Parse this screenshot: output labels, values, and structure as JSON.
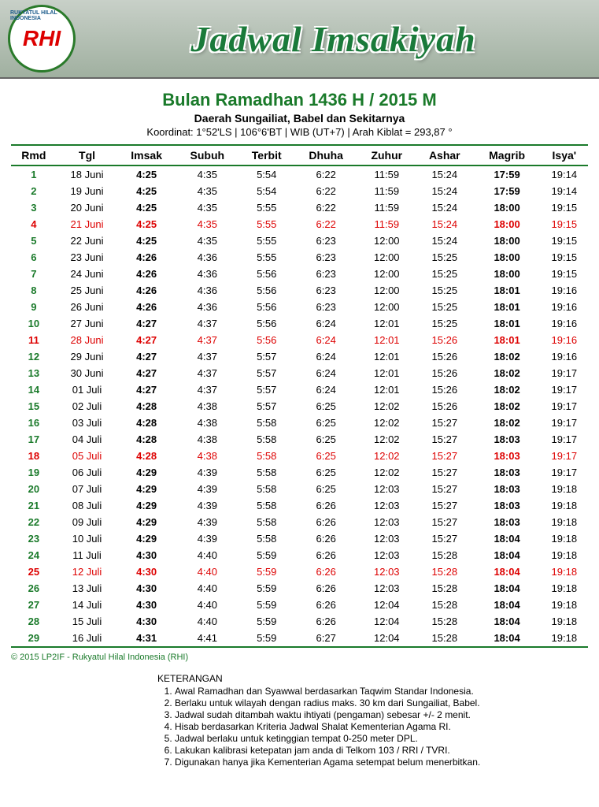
{
  "banner": {
    "logo_main": "RHI",
    "logo_arc": "RUKYATUL HILAL INDONESIA",
    "title": "Jadwal Imsakiyah"
  },
  "header": {
    "main": "Bulan Ramadhan 1436 H / 2015 M",
    "region": "Daerah Sungailiat, Babel dan Sekitarnya",
    "coord": "Koordinat: 1°52'LS | 106°6'BT | WIB (UT+7) | Arah Kiblat = 293,87 °"
  },
  "columns": [
    "Rmd",
    "Tgl",
    "Imsak",
    "Subuh",
    "Terbit",
    "Dhuha",
    "Zuhur",
    "Ashar",
    "Magrib",
    "Isya'"
  ],
  "rows": [
    {
      "rmd": "1",
      "tgl": "18 Juni",
      "imsak": "4:25",
      "subuh": "4:35",
      "terbit": "5:54",
      "dhuha": "6:22",
      "zuhur": "11:59",
      "ashar": "15:24",
      "magrib": "17:59",
      "isya": "19:14",
      "sun": false
    },
    {
      "rmd": "2",
      "tgl": "19 Juni",
      "imsak": "4:25",
      "subuh": "4:35",
      "terbit": "5:54",
      "dhuha": "6:22",
      "zuhur": "11:59",
      "ashar": "15:24",
      "magrib": "17:59",
      "isya": "19:14",
      "sun": false
    },
    {
      "rmd": "3",
      "tgl": "20 Juni",
      "imsak": "4:25",
      "subuh": "4:35",
      "terbit": "5:55",
      "dhuha": "6:22",
      "zuhur": "11:59",
      "ashar": "15:24",
      "magrib": "18:00",
      "isya": "19:15",
      "sun": false
    },
    {
      "rmd": "4",
      "tgl": "21 Juni",
      "imsak": "4:25",
      "subuh": "4:35",
      "terbit": "5:55",
      "dhuha": "6:22",
      "zuhur": "11:59",
      "ashar": "15:24",
      "magrib": "18:00",
      "isya": "19:15",
      "sun": true
    },
    {
      "rmd": "5",
      "tgl": "22 Juni",
      "imsak": "4:25",
      "subuh": "4:35",
      "terbit": "5:55",
      "dhuha": "6:23",
      "zuhur": "12:00",
      "ashar": "15:24",
      "magrib": "18:00",
      "isya": "19:15",
      "sun": false
    },
    {
      "rmd": "6",
      "tgl": "23 Juni",
      "imsak": "4:26",
      "subuh": "4:36",
      "terbit": "5:55",
      "dhuha": "6:23",
      "zuhur": "12:00",
      "ashar": "15:25",
      "magrib": "18:00",
      "isya": "19:15",
      "sun": false
    },
    {
      "rmd": "7",
      "tgl": "24 Juni",
      "imsak": "4:26",
      "subuh": "4:36",
      "terbit": "5:56",
      "dhuha": "6:23",
      "zuhur": "12:00",
      "ashar": "15:25",
      "magrib": "18:00",
      "isya": "19:15",
      "sun": false
    },
    {
      "rmd": "8",
      "tgl": "25 Juni",
      "imsak": "4:26",
      "subuh": "4:36",
      "terbit": "5:56",
      "dhuha": "6:23",
      "zuhur": "12:00",
      "ashar": "15:25",
      "magrib": "18:01",
      "isya": "19:16",
      "sun": false
    },
    {
      "rmd": "9",
      "tgl": "26 Juni",
      "imsak": "4:26",
      "subuh": "4:36",
      "terbit": "5:56",
      "dhuha": "6:23",
      "zuhur": "12:00",
      "ashar": "15:25",
      "magrib": "18:01",
      "isya": "19:16",
      "sun": false
    },
    {
      "rmd": "10",
      "tgl": "27 Juni",
      "imsak": "4:27",
      "subuh": "4:37",
      "terbit": "5:56",
      "dhuha": "6:24",
      "zuhur": "12:01",
      "ashar": "15:25",
      "magrib": "18:01",
      "isya": "19:16",
      "sun": false
    },
    {
      "rmd": "11",
      "tgl": "28 Juni",
      "imsak": "4:27",
      "subuh": "4:37",
      "terbit": "5:56",
      "dhuha": "6:24",
      "zuhur": "12:01",
      "ashar": "15:26",
      "magrib": "18:01",
      "isya": "19:16",
      "sun": true
    },
    {
      "rmd": "12",
      "tgl": "29 Juni",
      "imsak": "4:27",
      "subuh": "4:37",
      "terbit": "5:57",
      "dhuha": "6:24",
      "zuhur": "12:01",
      "ashar": "15:26",
      "magrib": "18:02",
      "isya": "19:16",
      "sun": false
    },
    {
      "rmd": "13",
      "tgl": "30 Juni",
      "imsak": "4:27",
      "subuh": "4:37",
      "terbit": "5:57",
      "dhuha": "6:24",
      "zuhur": "12:01",
      "ashar": "15:26",
      "magrib": "18:02",
      "isya": "19:17",
      "sun": false
    },
    {
      "rmd": "14",
      "tgl": "01 Juli",
      "imsak": "4:27",
      "subuh": "4:37",
      "terbit": "5:57",
      "dhuha": "6:24",
      "zuhur": "12:01",
      "ashar": "15:26",
      "magrib": "18:02",
      "isya": "19:17",
      "sun": false
    },
    {
      "rmd": "15",
      "tgl": "02 Juli",
      "imsak": "4:28",
      "subuh": "4:38",
      "terbit": "5:57",
      "dhuha": "6:25",
      "zuhur": "12:02",
      "ashar": "15:26",
      "magrib": "18:02",
      "isya": "19:17",
      "sun": false
    },
    {
      "rmd": "16",
      "tgl": "03 Juli",
      "imsak": "4:28",
      "subuh": "4:38",
      "terbit": "5:58",
      "dhuha": "6:25",
      "zuhur": "12:02",
      "ashar": "15:27",
      "magrib": "18:02",
      "isya": "19:17",
      "sun": false
    },
    {
      "rmd": "17",
      "tgl": "04 Juli",
      "imsak": "4:28",
      "subuh": "4:38",
      "terbit": "5:58",
      "dhuha": "6:25",
      "zuhur": "12:02",
      "ashar": "15:27",
      "magrib": "18:03",
      "isya": "19:17",
      "sun": false
    },
    {
      "rmd": "18",
      "tgl": "05 Juli",
      "imsak": "4:28",
      "subuh": "4:38",
      "terbit": "5:58",
      "dhuha": "6:25",
      "zuhur": "12:02",
      "ashar": "15:27",
      "magrib": "18:03",
      "isya": "19:17",
      "sun": true
    },
    {
      "rmd": "19",
      "tgl": "06 Juli",
      "imsak": "4:29",
      "subuh": "4:39",
      "terbit": "5:58",
      "dhuha": "6:25",
      "zuhur": "12:02",
      "ashar": "15:27",
      "magrib": "18:03",
      "isya": "19:17",
      "sun": false
    },
    {
      "rmd": "20",
      "tgl": "07 Juli",
      "imsak": "4:29",
      "subuh": "4:39",
      "terbit": "5:58",
      "dhuha": "6:25",
      "zuhur": "12:03",
      "ashar": "15:27",
      "magrib": "18:03",
      "isya": "19:18",
      "sun": false
    },
    {
      "rmd": "21",
      "tgl": "08 Juli",
      "imsak": "4:29",
      "subuh": "4:39",
      "terbit": "5:58",
      "dhuha": "6:26",
      "zuhur": "12:03",
      "ashar": "15:27",
      "magrib": "18:03",
      "isya": "19:18",
      "sun": false
    },
    {
      "rmd": "22",
      "tgl": "09 Juli",
      "imsak": "4:29",
      "subuh": "4:39",
      "terbit": "5:58",
      "dhuha": "6:26",
      "zuhur": "12:03",
      "ashar": "15:27",
      "magrib": "18:03",
      "isya": "19:18",
      "sun": false
    },
    {
      "rmd": "23",
      "tgl": "10 Juli",
      "imsak": "4:29",
      "subuh": "4:39",
      "terbit": "5:58",
      "dhuha": "6:26",
      "zuhur": "12:03",
      "ashar": "15:27",
      "magrib": "18:04",
      "isya": "19:18",
      "sun": false
    },
    {
      "rmd": "24",
      "tgl": "11 Juli",
      "imsak": "4:30",
      "subuh": "4:40",
      "terbit": "5:59",
      "dhuha": "6:26",
      "zuhur": "12:03",
      "ashar": "15:28",
      "magrib": "18:04",
      "isya": "19:18",
      "sun": false
    },
    {
      "rmd": "25",
      "tgl": "12 Juli",
      "imsak": "4:30",
      "subuh": "4:40",
      "terbit": "5:59",
      "dhuha": "6:26",
      "zuhur": "12:03",
      "ashar": "15:28",
      "magrib": "18:04",
      "isya": "19:18",
      "sun": true
    },
    {
      "rmd": "26",
      "tgl": "13 Juli",
      "imsak": "4:30",
      "subuh": "4:40",
      "terbit": "5:59",
      "dhuha": "6:26",
      "zuhur": "12:03",
      "ashar": "15:28",
      "magrib": "18:04",
      "isya": "19:18",
      "sun": false
    },
    {
      "rmd": "27",
      "tgl": "14 Juli",
      "imsak": "4:30",
      "subuh": "4:40",
      "terbit": "5:59",
      "dhuha": "6:26",
      "zuhur": "12:04",
      "ashar": "15:28",
      "magrib": "18:04",
      "isya": "19:18",
      "sun": false
    },
    {
      "rmd": "28",
      "tgl": "15 Juli",
      "imsak": "4:30",
      "subuh": "4:40",
      "terbit": "5:59",
      "dhuha": "6:26",
      "zuhur": "12:04",
      "ashar": "15:28",
      "magrib": "18:04",
      "isya": "19:18",
      "sun": false
    },
    {
      "rmd": "29",
      "tgl": "16 Juli",
      "imsak": "4:31",
      "subuh": "4:41",
      "terbit": "5:59",
      "dhuha": "6:27",
      "zuhur": "12:04",
      "ashar": "15:28",
      "magrib": "18:04",
      "isya": "19:18",
      "sun": false
    }
  ],
  "copyright": "© 2015 LP2IF - Rukyatul Hilal Indonesia (RHI)",
  "notes": {
    "title": "KETERANGAN",
    "items": [
      "Awal Ramadhan dan Syawwal berdasarkan Taqwim Standar Indonesia.",
      "Berlaku untuk wilayah dengan radius maks. 30 km dari Sungailiat, Babel.",
      "Jadwal sudah ditambah waktu ihtiyati (pengaman) sebesar +/- 2 menit.",
      "Hisab berdasarkan Kriteria Jadwal Shalat Kementerian Agama RI.",
      "Jadwal berlaku untuk ketinggian tempat 0-250 meter DPL.",
      "Lakukan kalibrasi ketepatan jam anda di Telkom 103 / RRI / TVRI.",
      "Digunakan hanya jika Kementerian Agama setempat belum menerbitkan."
    ]
  }
}
